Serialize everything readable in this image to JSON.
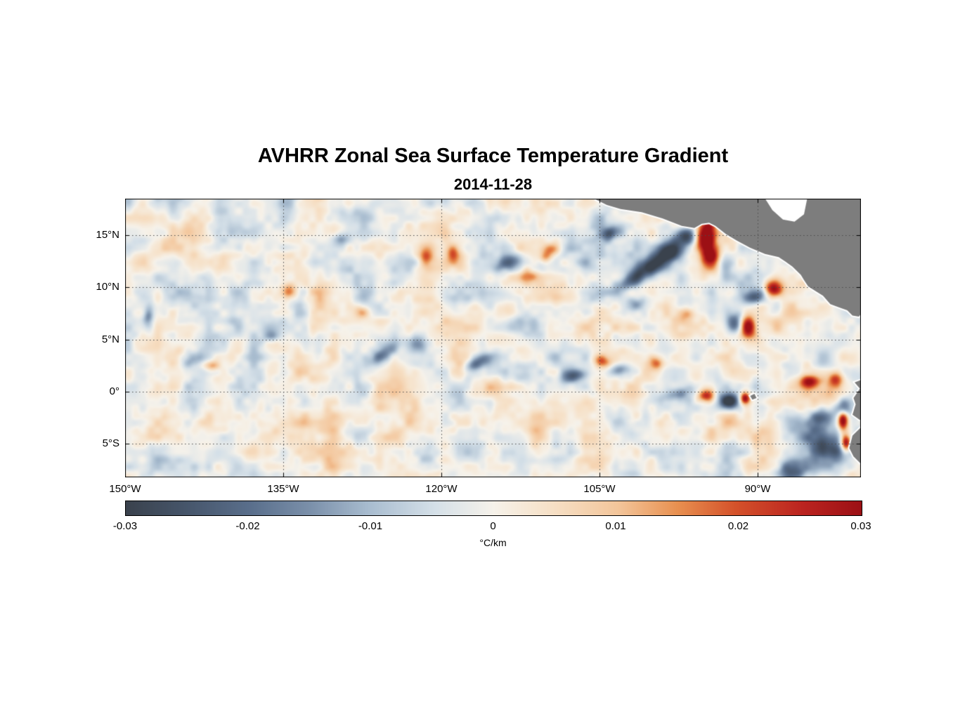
{
  "title": "AVHRR Zonal Sea Surface Temperature Gradient",
  "subtitle": "2014-11-28",
  "chart_data": {
    "type": "heatmap",
    "title": "AVHRR Zonal Sea Surface Temperature Gradient",
    "subtitle": "2014-11-28",
    "units": "°C/km",
    "lon_range": [
      -150,
      -80.2
    ],
    "lat_range": [
      -8.2,
      18.5
    ],
    "lon_ticks": [
      {
        "value": -150,
        "label": "150°W"
      },
      {
        "value": -135,
        "label": "135°W"
      },
      {
        "value": -120,
        "label": "120°W"
      },
      {
        "value": -105,
        "label": "105°W"
      },
      {
        "value": -90,
        "label": "90°W"
      }
    ],
    "lat_ticks": [
      {
        "value": 15,
        "label": "15°N"
      },
      {
        "value": 10,
        "label": "10°N"
      },
      {
        "value": 5,
        "label": "5°N"
      },
      {
        "value": 0,
        "label": "0°"
      },
      {
        "value": -5,
        "label": "5°S"
      }
    ],
    "grid": {
      "show": true,
      "style": "dotted",
      "color": "#4a4a4a"
    },
    "colorbar": {
      "orientation": "horizontal",
      "min": -0.03,
      "max": 0.03,
      "ticks": [
        -0.03,
        -0.02,
        -0.01,
        0,
        0.01,
        0.02,
        0.03
      ],
      "tick_labels": [
        "-0.03",
        "-0.02",
        "-0.01",
        "0",
        "0.01",
        "0.02",
        "0.03"
      ],
      "label": "°C/km"
    },
    "colormap": {
      "stops": [
        [
          0.0,
          "#3a424d"
        ],
        [
          0.08,
          "#46556a"
        ],
        [
          0.17,
          "#5a6f8c"
        ],
        [
          0.25,
          "#7b90aa"
        ],
        [
          0.33,
          "#a8bccf"
        ],
        [
          0.42,
          "#d5e0e8"
        ],
        [
          0.5,
          "#f6f2ea"
        ],
        [
          0.58,
          "#f6e0c6"
        ],
        [
          0.67,
          "#f3c59a"
        ],
        [
          0.75,
          "#e89050"
        ],
        [
          0.83,
          "#d4512a"
        ],
        [
          0.92,
          "#bb2420"
        ],
        [
          1.0,
          "#9c1015"
        ]
      ]
    },
    "land_color": "#7d7d7d",
    "coast_halo_color": "#ffffff",
    "land_polygons": [
      [
        [
          -106,
          19
        ],
        [
          -105.3,
          18.4
        ],
        [
          -104.3,
          17.9
        ],
        [
          -103,
          17.5
        ],
        [
          -101,
          17.2
        ],
        [
          -99,
          16.6
        ],
        [
          -97.2,
          15.9
        ],
        [
          -96,
          15.7
        ],
        [
          -95.3,
          16.1
        ],
        [
          -94.6,
          16.2
        ],
        [
          -94,
          15.9
        ],
        [
          -93,
          15.1
        ],
        [
          -92,
          14.5
        ],
        [
          -90.7,
          13.8
        ],
        [
          -89.3,
          13.2
        ],
        [
          -88,
          12.9
        ],
        [
          -87.4,
          12.5
        ],
        [
          -86.7,
          12
        ],
        [
          -85.9,
          11.2
        ],
        [
          -85.6,
          10.7
        ],
        [
          -85.2,
          10.1
        ],
        [
          -84.6,
          9.7
        ],
        [
          -83.8,
          9.2
        ],
        [
          -83.1,
          8.4
        ],
        [
          -82.3,
          8.1
        ],
        [
          -81.5,
          7.8
        ],
        [
          -81,
          7.3
        ],
        [
          -80.4,
          7.2
        ],
        [
          -80,
          7.7
        ],
        [
          -79.6,
          8.4
        ],
        [
          -78,
          8.6
        ],
        [
          -78,
          19
        ]
      ],
      [
        [
          -79,
          1.8
        ],
        [
          -80,
          1.2
        ],
        [
          -80.8,
          0.9
        ],
        [
          -80.3,
          0.3
        ],
        [
          -80.9,
          -0.6
        ],
        [
          -80.7,
          -1.2
        ],
        [
          -81,
          -2.2
        ],
        [
          -80.3,
          -2.7
        ],
        [
          -79.7,
          -2.6
        ],
        [
          -80.2,
          -3.4
        ],
        [
          -81,
          -4.2
        ],
        [
          -81.3,
          -5.4
        ],
        [
          -80.9,
          -6.2
        ],
        [
          -80.1,
          -7
        ],
        [
          -79.4,
          -7.9
        ],
        [
          -78.9,
          -9
        ],
        [
          -76,
          -9
        ],
        [
          -76,
          1.8
        ]
      ],
      [
        [
          -90.7,
          -0.4
        ],
        [
          -90.3,
          -0.2
        ],
        [
          -90.1,
          -0.6
        ],
        [
          -90.5,
          -0.75
        ]
      ]
    ],
    "no_data_polygons": [
      [
        [
          -89.6,
          19
        ],
        [
          -88.6,
          17.4
        ],
        [
          -87.6,
          16.5
        ],
        [
          -86.5,
          16.3
        ],
        [
          -85.6,
          17
        ],
        [
          -85.2,
          19
        ]
      ]
    ],
    "anomaly_blob_format": [
      "lon",
      "lat",
      "sigma_x_deg",
      "sigma_y_deg",
      "rotation_deg",
      "amplitude_C_per_km"
    ],
    "anomaly_blobs": [
      [
        -102.0,
        10.6,
        1.7,
        0.75,
        35,
        -0.018
      ],
      [
        -100.2,
        12.0,
        1.5,
        0.85,
        30,
        -0.024
      ],
      [
        -98.3,
        13.4,
        1.3,
        0.95,
        25,
        -0.03
      ],
      [
        -96.8,
        14.9,
        1.0,
        0.8,
        10,
        -0.026
      ],
      [
        -103.9,
        15.2,
        0.9,
        0.6,
        20,
        -0.018
      ],
      [
        -94.9,
        14.8,
        0.85,
        1.5,
        -8,
        0.045
      ],
      [
        -94.4,
        12.9,
        0.75,
        1.2,
        0,
        0.032
      ],
      [
        -93.0,
        12.2,
        0.8,
        1.0,
        0,
        -0.014
      ],
      [
        -88.6,
        9.9,
        1.0,
        0.85,
        0,
        0.035
      ],
      [
        -90.2,
        9.2,
        1.2,
        0.7,
        20,
        -0.016
      ],
      [
        -92.2,
        6.6,
        0.8,
        1.0,
        0,
        -0.028
      ],
      [
        -90.9,
        6.2,
        0.7,
        0.95,
        0,
        0.032
      ],
      [
        -94.9,
        -0.4,
        0.8,
        0.65,
        0,
        0.028
      ],
      [
        -92.7,
        -0.9,
        0.9,
        0.7,
        0,
        -0.03
      ],
      [
        -91.2,
        -0.6,
        0.5,
        0.6,
        0,
        0.034
      ],
      [
        -97.6,
        -0.2,
        1.6,
        0.6,
        8,
        -0.014
      ],
      [
        -85.1,
        0.9,
        0.9,
        0.6,
        0,
        0.024
      ],
      [
        -82.6,
        1.2,
        0.7,
        0.6,
        0,
        0.022
      ],
      [
        -83.6,
        -5.2,
        2.3,
        1.7,
        -35,
        -0.028
      ],
      [
        -81.9,
        -1.6,
        0.9,
        1.0,
        0,
        -0.024
      ],
      [
        -81.9,
        -2.7,
        0.5,
        0.9,
        0,
        0.04
      ],
      [
        -81.6,
        -4.9,
        0.5,
        0.8,
        0,
        0.036
      ],
      [
        -86.8,
        -7.6,
        2.0,
        1.1,
        10,
        -0.02
      ],
      [
        -84.0,
        -2.5,
        1.2,
        0.9,
        20,
        -0.022
      ],
      [
        -134.4,
        9.6,
        0.8,
        0.7,
        0,
        0.018
      ],
      [
        -136.2,
        5.3,
        0.8,
        0.6,
        0,
        -0.015
      ],
      [
        -125.6,
        3.6,
        1.8,
        0.7,
        35,
        -0.017
      ],
      [
        -122.2,
        4.6,
        1.0,
        0.7,
        0,
        -0.015
      ],
      [
        -121.4,
        12.9,
        0.7,
        0.9,
        0,
        0.016
      ],
      [
        -118.9,
        13.3,
        0.6,
        0.8,
        0,
        0.017
      ],
      [
        -113.6,
        12.4,
        1.2,
        0.7,
        20,
        -0.017
      ],
      [
        -112.0,
        11.0,
        0.9,
        0.6,
        10,
        0.019
      ],
      [
        -110.2,
        12.9,
        0.6,
        0.6,
        0,
        0.015
      ],
      [
        -109.5,
        13.6,
        0.8,
        0.6,
        0,
        0.014
      ],
      [
        -107.3,
        1.5,
        1.3,
        0.6,
        10,
        -0.019
      ],
      [
        -104.8,
        2.9,
        0.8,
        0.6,
        0,
        0.017
      ],
      [
        -103.1,
        2.1,
        1.0,
        0.6,
        15,
        -0.016
      ],
      [
        -99.7,
        2.7,
        0.7,
        0.6,
        0,
        0.019
      ],
      [
        -101.5,
        8.6,
        1.0,
        0.7,
        15,
        -0.013
      ],
      [
        -97.0,
        7.5,
        0.9,
        0.7,
        0,
        0.014
      ],
      [
        -143.6,
        3.1,
        1.2,
        0.8,
        20,
        -0.013
      ],
      [
        -141.8,
        2.5,
        0.7,
        0.5,
        0,
        0.014
      ],
      [
        -147.8,
        7.2,
        0.5,
        0.9,
        0,
        -0.015
      ],
      [
        -129.6,
        14.6,
        0.9,
        0.6,
        0,
        -0.012
      ],
      [
        -127.6,
        7.6,
        0.7,
        0.6,
        0,
        0.013
      ],
      [
        -116.5,
        2.8,
        1.4,
        0.6,
        25,
        -0.016
      ]
    ],
    "noise": {
      "seed": 7,
      "octaves": [
        {
          "scale": 3.2,
          "amp": 0.006
        },
        {
          "scale": 1.5,
          "amp": 0.0055
        },
        {
          "scale": 0.7,
          "amp": 0.0028
        }
      ]
    }
  }
}
